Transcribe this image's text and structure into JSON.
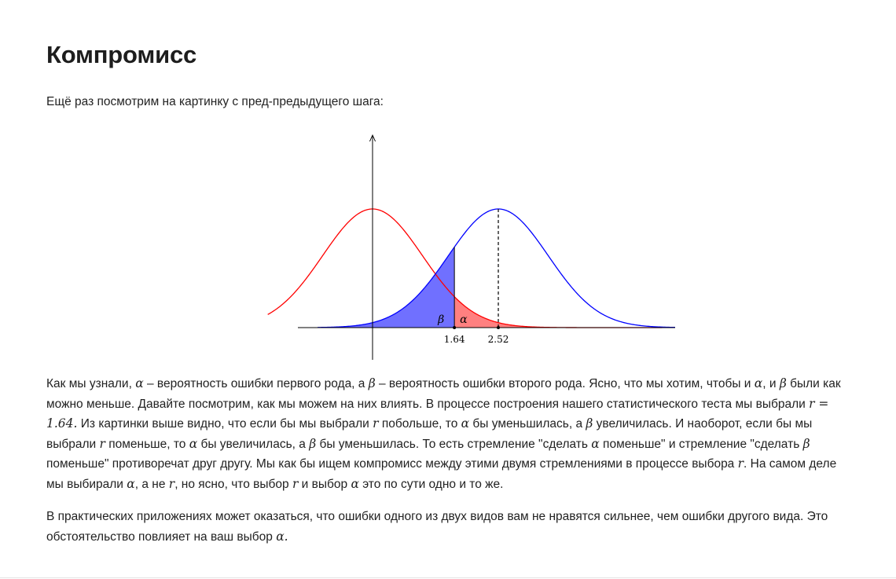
{
  "title": "Компромисс",
  "intro": "Ещё раз посмотрим на картинку с пред-предыдущего шага:",
  "figure": {
    "tick_labels": [
      "1.64",
      "2.52"
    ],
    "region_labels": {
      "beta": "β",
      "alpha": "α"
    },
    "colors": {
      "null_curve": "#ff0000",
      "alt_curve": "#0000ff",
      "beta_fill": "#7070ff",
      "alpha_fill": "#ff8080"
    }
  },
  "chart_data": {
    "type": "line",
    "series": [
      {
        "color": "#ff0000",
        "mean": 0,
        "sd": 1
      },
      {
        "color": "#0000ff",
        "mean": 2.52,
        "sd": 1
      }
    ],
    "threshold": 1.64,
    "xticks": [
      1.64,
      2.52
    ],
    "shaded_regions": [
      {
        "label": "β",
        "x_range": [
          null,
          1.64
        ],
        "series_index": 1,
        "color": "#7070ff"
      },
      {
        "label": "α",
        "x_range": [
          1.64,
          null
        ],
        "series_index": 0,
        "color": "#ff8080"
      }
    ]
  },
  "paragraph1": {
    "s1": "Как мы узнали, ",
    "alpha": "α",
    "s2": " – вероятность ошибки первого рода, а ",
    "beta": "β",
    "s3": " – вероятность ошибки второго рода. Ясно, что мы хотим, чтобы и ",
    "s4": ", и ",
    "s5": " были как можно меньше. Давайте посмотрим, как мы можем на них влиять. В процессе построения нашего статистического теста мы выбрали ",
    "r_eq": "r = 1.64.",
    "s6": " Из картинки выше видно, что если бы мы выбрали ",
    "r": "r",
    "s7": " побольше, то ",
    "s8": " бы уменьшилась, а ",
    "s9": " увеличилась. И наоборот, если бы мы выбрали ",
    "s10": " поменьше, то ",
    "s11": " бы увеличилась, а ",
    "s12": " бы уменьшилась. То есть стремление \"сделать ",
    "s13": " поменьше\" и стремление \"сделать ",
    "s14": " поменьше\" противоречат друг другу. Мы как бы ищем компромисс между этими двумя стремлениями в процессе выбора ",
    "s15": ". На самом деле мы выбирали ",
    "s16": ", а не ",
    "s17": ", но ясно, что выбор ",
    "s18": " и выбор ",
    "s19": " это по сути одно и то же."
  },
  "paragraph2": {
    "s1": "В практических приложениях может оказаться, что ошибки одного из двух видов вам не нравятся сильнее, чем ошибки другого вида. Это обстоятельство повлияет на ваш выбор ",
    "alpha_dot": "α."
  }
}
